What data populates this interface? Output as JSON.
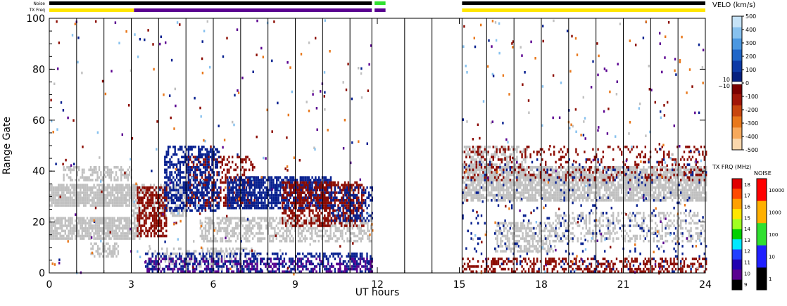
{
  "top_bars": {
    "noise_label": "Noise",
    "txfreq_label": "TX Freq"
  },
  "chart_data": {
    "type": "heatmap",
    "xlabel": "UT hours",
    "ylabel": "Range Gate",
    "xlim": [
      0,
      24
    ],
    "ylim": [
      0,
      100
    ],
    "x_ticks": [
      "0",
      "3",
      "6",
      "9",
      "12",
      "15",
      "18",
      "21",
      "24"
    ],
    "y_ticks": [
      "0",
      "20",
      "40",
      "60",
      "80",
      "100"
    ],
    "data_gaps_hours": [
      [
        12,
        15.1
      ]
    ],
    "scan_lines_hours": [
      1,
      2,
      3,
      4,
      5,
      6,
      7,
      8,
      9,
      10,
      11,
      11.8,
      13,
      14,
      15.1,
      16,
      17,
      18,
      19,
      20,
      21,
      22,
      23
    ],
    "ground_scatter_color": "#c0c0c0",
    "velo_scale": {
      "title": "VELO (km/s)",
      "ticks": [
        "500",
        "400",
        "300",
        "200",
        "100",
        "0",
        "-100",
        "-200",
        "-300",
        "-400",
        "-500"
      ],
      "extra_ticks": [
        "10",
        "−10"
      ],
      "colors": [
        "#c6e3f7",
        "#87c1ee",
        "#4b97e0",
        "#1f66c8",
        "#0d3aa6",
        "#06207f",
        "#7a0000",
        "#a11608",
        "#c8460f",
        "#e8781c",
        "#f7a95c",
        "#fbd7ac"
      ]
    },
    "txfreq_scale": {
      "title": "TX FRQ (MHz)",
      "ticks": [
        "18",
        "17",
        "16",
        "15",
        "14",
        "13",
        "12",
        "11",
        "10",
        "9"
      ],
      "colors": [
        "#e00000",
        "#ff4a00",
        "#ffa000",
        "#ffe600",
        "#a0ff20",
        "#00d000",
        "#00e8ff",
        "#2040ff",
        "#2000b0",
        "#5a0090",
        "#000000"
      ]
    },
    "noise_scale": {
      "title": "NOISE",
      "ticks": [
        "10000",
        "1000",
        "100",
        "10",
        "1"
      ],
      "colors": [
        "#ff0000",
        "#ffb000",
        "#30e030",
        "#2020ff",
        "#000000"
      ]
    },
    "bands": [
      {
        "name": "ground-scatter",
        "x0": 0,
        "x1": 3.1,
        "y0": 26,
        "y1": 35,
        "color": "#c0c0c0",
        "density": 0.85
      },
      {
        "name": "ground-scatter",
        "x0": 0,
        "x1": 3.3,
        "y0": 13,
        "y1": 22,
        "color": "#c0c0c0",
        "density": 0.8
      },
      {
        "name": "ground-scatter",
        "x0": 0.5,
        "x1": 3.0,
        "y0": 36,
        "y1": 42,
        "color": "#c0c0c0",
        "density": 0.5
      },
      {
        "name": "ground-scatter",
        "x0": 1.5,
        "x1": 2.5,
        "y0": 6,
        "y1": 12,
        "color": "#c0c0c0",
        "density": 0.5
      },
      {
        "name": "ground-scatter",
        "x0": 3.0,
        "x1": 5.0,
        "y0": 22,
        "y1": 35,
        "color": "#c0c0c0",
        "density": 0.55
      },
      {
        "name": "ground-scatter",
        "x0": 5.5,
        "x1": 11.8,
        "y0": 12,
        "y1": 22,
        "color": "#c0c0c0",
        "density": 0.55
      },
      {
        "name": "ground-scatter",
        "x0": 3.6,
        "x1": 7.5,
        "y0": 2,
        "y1": 10,
        "color": "#c0c0c0",
        "density": 0.35
      },
      {
        "name": "negative-velocity",
        "x0": 3.2,
        "x1": 4.3,
        "y0": 14,
        "y1": 34,
        "color": "#8b0a00",
        "density": 0.65
      },
      {
        "name": "negative-velocity",
        "x0": 5.0,
        "x1": 7.5,
        "y0": 26,
        "y1": 46,
        "color": "#8b0a00",
        "density": 0.35
      },
      {
        "name": "positive-velocity",
        "x0": 4.2,
        "x1": 6.2,
        "y0": 24,
        "y1": 50,
        "color": "#061f8f",
        "density": 0.55
      },
      {
        "name": "positive-velocity",
        "x0": 6.5,
        "x1": 10.3,
        "y0": 25,
        "y1": 38,
        "color": "#061f8f",
        "density": 0.75
      },
      {
        "name": "negative-velocity",
        "x0": 8.5,
        "x1": 11.5,
        "y0": 18,
        "y1": 36,
        "color": "#8b0a00",
        "density": 0.55
      },
      {
        "name": "positive-velocity",
        "x0": 10.3,
        "x1": 11.8,
        "y0": 20,
        "y1": 34,
        "color": "#061f8f",
        "density": 0.4
      },
      {
        "name": "low-gates-mixed",
        "x0": 3.5,
        "x1": 11.8,
        "y0": 0,
        "y1": 8,
        "color": "#061f8f",
        "density": 0.45
      },
      {
        "name": "low-gates-mixed",
        "x0": 3.5,
        "x1": 11.8,
        "y0": 0,
        "y1": 6,
        "color": "#5a0090",
        "density": 0.25
      },
      {
        "name": "ground-scatter",
        "x0": 15.1,
        "x1": 24,
        "y0": 28,
        "y1": 42,
        "color": "#c0c0c0",
        "density": 0.8
      },
      {
        "name": "ground-scatter",
        "x0": 15.1,
        "x1": 17.5,
        "y0": 40,
        "y1": 50,
        "color": "#c0c0c0",
        "density": 0.45
      },
      {
        "name": "ground-scatter",
        "x0": 16.3,
        "x1": 18.5,
        "y0": 8,
        "y1": 20,
        "color": "#c0c0c0",
        "density": 0.55
      },
      {
        "name": "ground-scatter",
        "x0": 18.5,
        "x1": 24,
        "y0": 12,
        "y1": 24,
        "color": "#c0c0c0",
        "density": 0.35
      },
      {
        "name": "negative-velocity",
        "x0": 15.1,
        "x1": 24,
        "y0": 0,
        "y1": 6,
        "color": "#8b0a00",
        "density": 0.4
      },
      {
        "name": "negative-velocity",
        "x0": 15.1,
        "x1": 24,
        "y0": 36,
        "y1": 50,
        "color": "#8b0a00",
        "density": 0.18
      },
      {
        "name": "positive-velocity",
        "x0": 15.1,
        "x1": 24,
        "y0": 0,
        "y1": 45,
        "color": "#061f8f",
        "density": 0.04
      }
    ],
    "noise_bar_segments": [
      {
        "x0": 0,
        "x1": 11.8,
        "color": "#000000"
      },
      {
        "x0": 11.9,
        "x1": 12.3,
        "color": "#30e030"
      },
      {
        "x0": 15.1,
        "x1": 24,
        "color": "#000000"
      }
    ],
    "txfreq_bar_segments": [
      {
        "x0": 0,
        "x1": 3.1,
        "color": "#ffe600"
      },
      {
        "x0": 3.1,
        "x1": 11.8,
        "color": "#5a0090"
      },
      {
        "x0": 11.9,
        "x1": 12.3,
        "color": "#5a0090"
      },
      {
        "x0": 15.1,
        "x1": 24,
        "color": "#ffe600"
      }
    ]
  }
}
